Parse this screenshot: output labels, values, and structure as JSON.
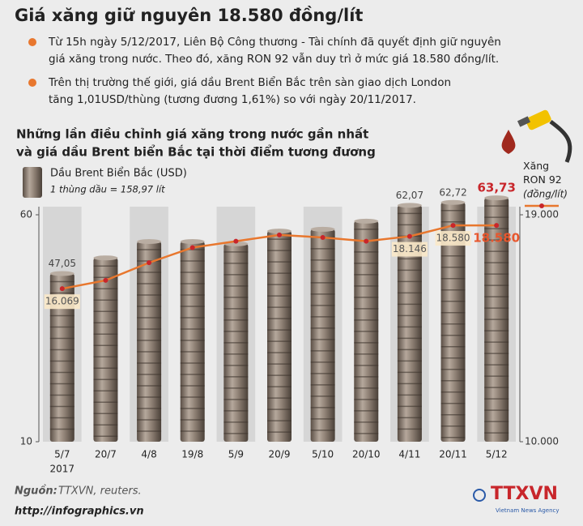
{
  "header": {
    "title": "Giá xăng giữ nguyên  18.580 đồng/lít",
    "bullets": [
      "Từ 15h ngày 5/12/2017, Liên Bộ Công thương - Tài chính đã quyết định giữ nguyên",
      "giá xăng trong nước. Theo đó, xăng RON 92 vẫn duy trì ở mức giá 18.580 đồng/lít.",
      "Trên thị trường thế giới, giá dầu Brent Biển Bắc trên sàn giao dịch London",
      "tăng 1,01USD/thùng (tương đương 1,61%) so với ngày 20/11/2017."
    ]
  },
  "chart_data": {
    "type": "bar_line",
    "title": [
      "Những lần điều chỉnh giá xăng trong nước gần nhất",
      "và giá dầu Brent biển Bắc tại thời điểm tương đương"
    ],
    "categories": [
      "5/7",
      "20/7",
      "4/8",
      "19/8",
      "5/9",
      "20/9",
      "5/10",
      "20/10",
      "4/11",
      "20/11",
      "5/12"
    ],
    "first_category_year": "2017",
    "series": [
      {
        "type": "bar",
        "name": "Dầu Brent Biển Bắc (USD)",
        "note": "1 thùng dầu = 158,97 lít",
        "color": "#8a7a6c",
        "values": [
          47.05,
          50.5,
          54.1,
          54.1,
          53.6,
          56.4,
          56.8,
          58.6,
          62.07,
          62.72,
          63.73
        ],
        "value_labels": [
          "47,05",
          null,
          null,
          null,
          null,
          null,
          null,
          null,
          "62,07",
          "62,72",
          "63,73"
        ]
      },
      {
        "type": "line",
        "axis": "y2",
        "name": "Xăng RON 92",
        "unit": "(đồng/lít)",
        "color": "#e8772e",
        "values": [
          16069,
          16400,
          17100,
          17700,
          17950,
          18200,
          18100,
          17950,
          18146,
          18580,
          18580
        ],
        "value_labels": [
          "16.069",
          null,
          null,
          null,
          null,
          null,
          null,
          null,
          "18.146",
          "18.580",
          "18.580"
        ]
      }
    ],
    "ylim": [
      10,
      60
    ],
    "yticks": [
      60,
      10
    ],
    "y2lim": [
      10000,
      19000
    ],
    "y2ticks": [
      {
        "value": 19000,
        "label": "19.000"
      },
      {
        "value": 10000,
        "label": "10.000"
      }
    ]
  },
  "footer": {
    "source_label": "Nguồn:",
    "source": "TTXVN, reuters.",
    "url": "http://infographics.vn",
    "logo": "TTXVN",
    "logo_sub": "Vietnam News Agency"
  }
}
